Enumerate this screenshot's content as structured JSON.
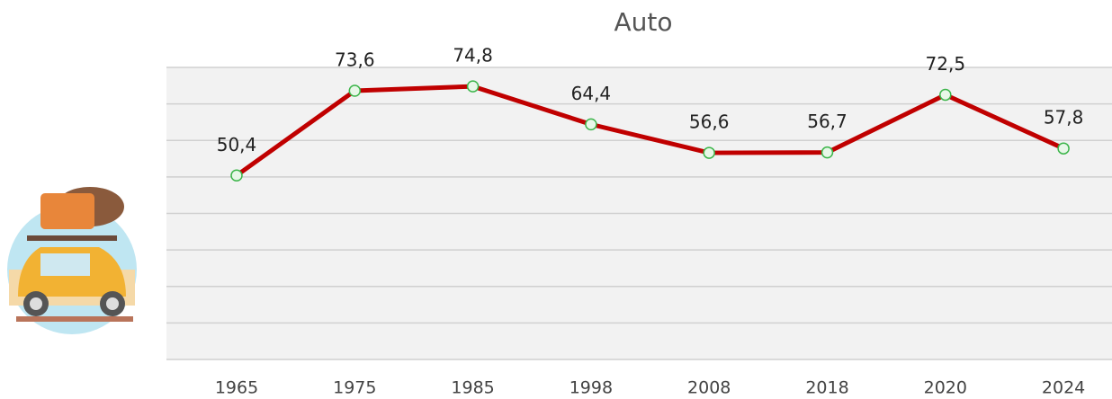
{
  "chart_data": {
    "type": "line",
    "title": "Auto",
    "categories": [
      "1965",
      "1975",
      "1985",
      "1998",
      "2008",
      "2018",
      "2020",
      "2024"
    ],
    "values": [
      50.4,
      73.6,
      74.8,
      64.4,
      56.6,
      56.7,
      72.5,
      57.8
    ],
    "value_labels": [
      "50,4",
      "73,6",
      "74,8",
      "64,4",
      "56,6",
      "56,7",
      "72,5",
      "57,8"
    ],
    "color": "#c00000",
    "marker_color": "#3cb54a",
    "ylim": [
      0,
      80
    ],
    "yticks": [
      0,
      10,
      20,
      30,
      40,
      50,
      60,
      70,
      80
    ],
    "grid": true
  }
}
